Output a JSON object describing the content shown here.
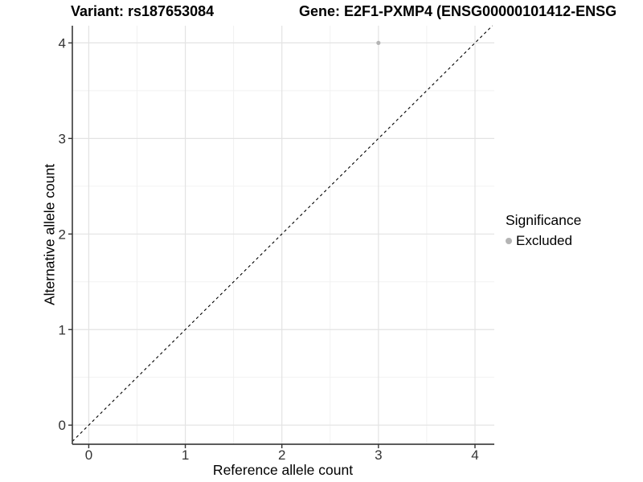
{
  "chart_data": {
    "type": "scatter",
    "title_left": "Variant: rs187653084",
    "title_right": "Gene: E2F1-PXMP4 (ENSG00000101412-ENSG",
    "xlabel": "Reference allele count",
    "ylabel": "Alternative allele count",
    "x_ticks": [
      0,
      1,
      2,
      3,
      4
    ],
    "y_ticks": [
      0,
      1,
      2,
      3,
      4
    ],
    "xlim": [
      -0.17,
      4.2
    ],
    "ylim": [
      -0.2,
      4.18
    ],
    "grid": true,
    "legend_position": "right",
    "points": [
      {
        "x": 3,
        "y": 4,
        "series": "Excluded"
      }
    ],
    "reference_line": {
      "slope": 1,
      "intercept": 0,
      "style": "dashed",
      "color": "#000000"
    },
    "legend": {
      "title": "Significance",
      "items": [
        {
          "label": "Excluded",
          "color": "#b4b4b4"
        }
      ]
    },
    "colors": {
      "background": "#ffffff",
      "grid_major": "#e3e3e3",
      "grid_minor": "#f0f0f0",
      "axis_line": "#444444",
      "tick": "#333333",
      "tick_label": "#333333",
      "title_text": "#000000"
    }
  }
}
